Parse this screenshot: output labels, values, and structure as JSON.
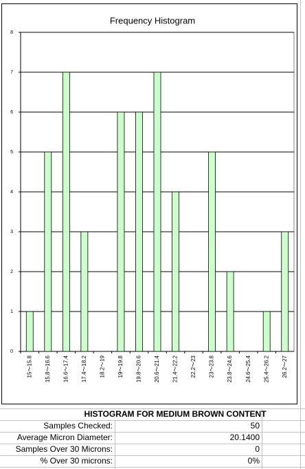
{
  "chart_data": {
    "type": "bar",
    "title": "Frequency Histogram",
    "categories": [
      "15～15.8",
      "15.8～16.6",
      "16.6～17.4",
      "17.4～18.2",
      "18.2～19",
      "19～19.8",
      "19.8～20.6",
      "20.6～21.4",
      "21.4～22.2",
      "22.2～23",
      "23～23.8",
      "23.8～24.6",
      "24.6～25.4",
      "25.4～26.2",
      "26.2～27"
    ],
    "values": [
      1,
      5,
      7,
      3,
      0,
      6,
      6,
      7,
      4,
      0,
      5,
      2,
      0,
      1,
      3
    ],
    "color": "#ccffcc",
    "ylim": [
      0,
      8
    ],
    "yticks": [
      0,
      1,
      2,
      3,
      4,
      5,
      6,
      7,
      8
    ],
    "grid": true
  },
  "table": {
    "title": "HISTOGRAM FOR MEDIUM BROWN CONTENT",
    "rows": [
      [
        "Samples Checked:",
        "50"
      ],
      [
        "Average Micron Diameter:",
        "20.1400"
      ],
      [
        "Samples Over 30 Microns:",
        "0"
      ],
      [
        "% Over 30 microns:",
        "0%"
      ]
    ]
  }
}
